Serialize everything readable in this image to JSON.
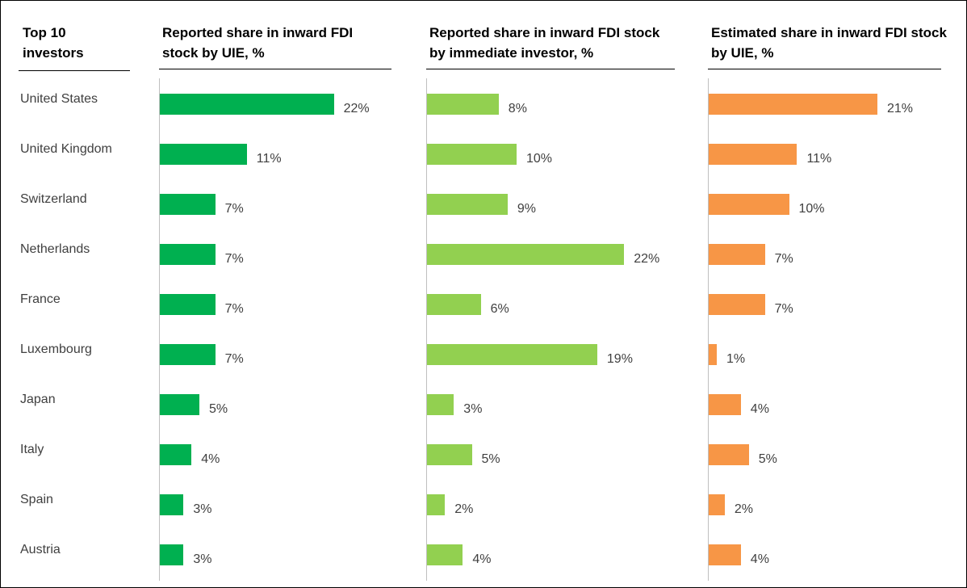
{
  "header": "Top 10 investors",
  "categories": [
    "United States",
    "United Kingdom",
    "Switzerland",
    "Netherlands",
    "France",
    "Luxembourg",
    "Japan",
    "Italy",
    "Spain",
    "Austria"
  ],
  "chart_data": [
    {
      "type": "bar",
      "title": "Reported share in inward FDI stock by UIE, %",
      "color": "#00b050",
      "values": [
        22,
        11,
        7,
        7,
        7,
        7,
        5,
        4,
        3,
        3
      ],
      "value_labels": [
        "22%",
        "11%",
        "7%",
        "7%",
        "7%",
        "7%",
        "5%",
        "4%",
        "3%",
        "3%"
      ]
    },
    {
      "type": "bar",
      "title": "Reported share in inward FDI stock by immediate investor, %",
      "color": "#92d050",
      "values": [
        8,
        10,
        9,
        22,
        6,
        19,
        3,
        5,
        2,
        4
      ],
      "value_labels": [
        "8%",
        "10%",
        "9%",
        "22%",
        "6%",
        "19%",
        "3%",
        "5%",
        "2%",
        "4%"
      ]
    },
    {
      "type": "bar",
      "title": "Estimated share in inward FDI stock by UIE, %",
      "color": "#f79646",
      "values": [
        21,
        11,
        10,
        7,
        7,
        1,
        4,
        5,
        2,
        4
      ],
      "value_labels": [
        "21%",
        "11%",
        "10%",
        "7%",
        "7%",
        "1%",
        "4%",
        "5%",
        "2%",
        "4%"
      ]
    }
  ]
}
